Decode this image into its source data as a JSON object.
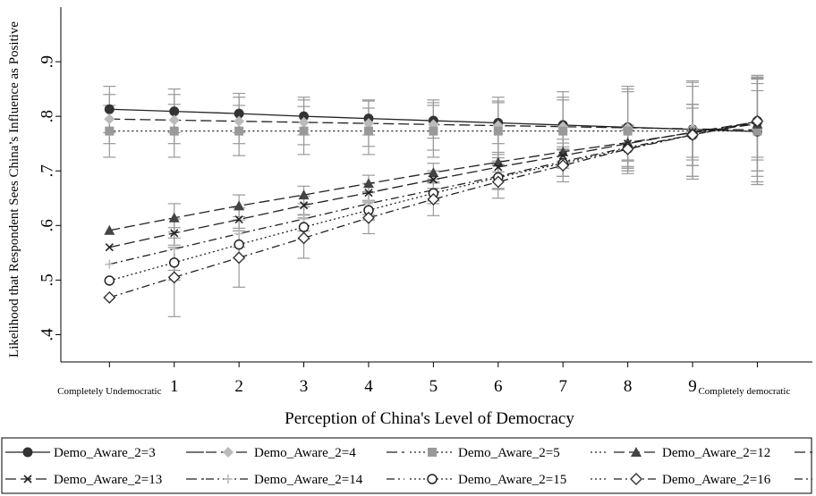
{
  "chart_data": {
    "type": "line",
    "xlabel": "Perception of China's Level of Democracy",
    "ylabel": "Likelihood that Respondent Sees China’s Influence as Positive",
    "x": [
      0,
      1,
      2,
      3,
      4,
      5,
      6,
      7,
      8,
      9,
      10
    ],
    "x_tick_labels": [
      "Completely Undemocratic",
      "1",
      "2",
      "3",
      "4",
      "5",
      "6",
      "7",
      "8",
      "9",
      "Completely democratic"
    ],
    "ylim": [
      0.35,
      1.0
    ],
    "xlim": [
      -0.75,
      10.85
    ],
    "y_ticks": [
      ".4",
      ".5",
      ".6",
      ".7",
      ".8",
      ".9"
    ],
    "y_tick_values": [
      0.4,
      0.5,
      0.6,
      0.7,
      0.8,
      0.9
    ],
    "grid": false,
    "legend_position": "bottom",
    "error_bars": true,
    "series": [
      {
        "name": "Demo_Aware_2=3",
        "marker": "circle-filled",
        "dash": "solid",
        "color": "#333333",
        "values": [
          0.813,
          0.809,
          0.805,
          0.8,
          0.796,
          0.792,
          0.788,
          0.784,
          0.78,
          0.776,
          0.772
        ],
        "lower": [
          0.77,
          0.77,
          0.77,
          0.766,
          0.766,
          0.76,
          0.75,
          0.74,
          0.7,
          0.69,
          0.675
        ],
        "upper": [
          0.855,
          0.85,
          0.842,
          0.835,
          0.83,
          0.825,
          0.825,
          0.83,
          0.85,
          0.865,
          0.87
        ]
      },
      {
        "name": "Demo_Aware_2=4",
        "marker": "diamond-filled",
        "dash": "long-dash",
        "color": "#bbbbbb",
        "values": [
          0.795,
          0.793,
          0.791,
          0.789,
          0.787,
          0.785,
          0.783,
          0.781,
          0.779,
          0.777,
          0.775
        ],
        "lower": [
          0.75,
          0.75,
          0.75,
          0.748,
          0.745,
          0.738,
          0.73,
          0.718,
          0.7,
          0.69,
          0.68
        ],
        "upper": [
          0.84,
          0.84,
          0.835,
          0.83,
          0.828,
          0.83,
          0.835,
          0.845,
          0.855,
          0.862,
          0.872
        ]
      },
      {
        "name": "Demo_Aware_2=5",
        "marker": "square-filled",
        "dash": "dotted",
        "color": "#999999",
        "values": [
          0.773,
          0.773,
          0.773,
          0.773,
          0.773,
          0.773,
          0.773,
          0.773,
          0.773,
          0.773,
          0.773
        ],
        "lower": [
          0.725,
          0.725,
          0.728,
          0.73,
          0.73,
          0.725,
          0.718,
          0.71,
          0.695,
          0.685,
          0.675
        ],
        "upper": [
          0.82,
          0.822,
          0.82,
          0.818,
          0.815,
          0.82,
          0.828,
          0.835,
          0.845,
          0.855,
          0.868
        ]
      },
      {
        "name": "Demo_Aware_2=12",
        "marker": "triangle-filled",
        "dash": "long-dash",
        "color": "#444444",
        "values": [
          0.591,
          0.614,
          0.636,
          0.656,
          0.677,
          0.697,
          0.716,
          0.735,
          0.752,
          0.77,
          0.786
        ],
        "lower": [
          0.591,
          0.588,
          0.616,
          0.64,
          0.662,
          0.68,
          0.698,
          0.712,
          0.72,
          0.725,
          0.725
        ],
        "upper": [
          0.591,
          0.64,
          0.656,
          0.672,
          0.692,
          0.714,
          0.734,
          0.758,
          0.784,
          0.815,
          0.847
        ]
      },
      {
        "name": "Demo_Aware_2=13",
        "marker": "x",
        "dash": "long-dash",
        "color": "#222222",
        "values": [
          0.56,
          0.586,
          0.611,
          0.637,
          0.66,
          0.684,
          0.707,
          0.728,
          0.75,
          0.771,
          0.79
        ],
        "lower": [
          0.56,
          0.56,
          0.59,
          0.62,
          0.643,
          0.668,
          0.69,
          0.705,
          0.718,
          0.72,
          0.72
        ],
        "upper": [
          0.56,
          0.612,
          0.632,
          0.654,
          0.677,
          0.7,
          0.724,
          0.751,
          0.782,
          0.822,
          0.86
        ]
      },
      {
        "name": "Demo_Aware_2=14",
        "marker": "plus",
        "dash": "dash-dot",
        "color": "#bbbbbb",
        "values": [
          0.529,
          0.557,
          0.585,
          0.612,
          0.64,
          0.665,
          0.69,
          0.717,
          0.743,
          0.766,
          0.789
        ],
        "lower": [
          0.529,
          0.518,
          0.56,
          0.59,
          0.62,
          0.645,
          0.668,
          0.69,
          0.705,
          0.71,
          0.69
        ],
        "upper": [
          0.529,
          0.596,
          0.61,
          0.634,
          0.66,
          0.685,
          0.712,
          0.744,
          0.781,
          0.822,
          0.875
        ]
      },
      {
        "name": "Demo_Aware_2=15",
        "marker": "circle-open",
        "dash": "dotted",
        "color": "#222222",
        "values": [
          0.499,
          0.532,
          0.565,
          0.597,
          0.628,
          0.659,
          0.688,
          0.714,
          0.741,
          0.766,
          0.791
        ],
        "lower": [
          0.499,
          0.5,
          0.54,
          0.575,
          0.61,
          0.64,
          0.666,
          0.69,
          0.708,
          0.71,
          0.7
        ],
        "upper": [
          0.499,
          0.564,
          0.59,
          0.619,
          0.646,
          0.678,
          0.71,
          0.738,
          0.774,
          0.822,
          0.87
        ]
      },
      {
        "name": "Demo_Aware_2=16",
        "marker": "diamond-open",
        "dash": "dash-dot",
        "color": "#333333",
        "values": [
          0.468,
          0.505,
          0.541,
          0.577,
          0.614,
          0.648,
          0.68,
          0.71,
          0.74,
          0.766,
          0.791
        ],
        "lower": [
          0.468,
          0.433,
          0.487,
          0.54,
          0.585,
          0.618,
          0.65,
          0.68,
          0.705,
          0.71,
          0.7
        ],
        "upper": [
          0.468,
          0.577,
          0.595,
          0.614,
          0.643,
          0.678,
          0.71,
          0.74,
          0.775,
          0.822,
          0.87
        ]
      }
    ]
  }
}
